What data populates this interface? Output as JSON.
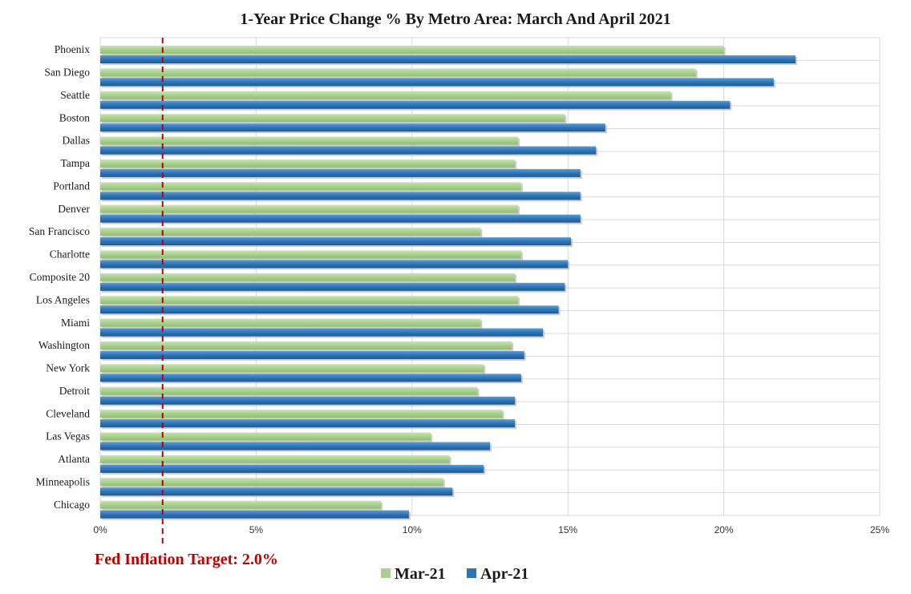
{
  "chart_data": {
    "type": "bar",
    "orientation": "horizontal",
    "title": "1-Year Price Change % By Metro Area: March And April 2021",
    "categories": [
      "Phoenix",
      "San Diego",
      "Seattle",
      "Boston",
      "Dallas",
      "Tampa",
      "Portland",
      "Denver",
      "San Francisco",
      "Charlotte",
      "Composite 20",
      "Los Angeles",
      "Miami",
      "Washington",
      "New York",
      "Detroit",
      "Cleveland",
      "Las Vegas",
      "Atlanta",
      "Minneapolis",
      "Chicago"
    ],
    "series": [
      {
        "name": "Mar-21",
        "color": "#a9d08e",
        "values": [
          20.0,
          19.1,
          18.3,
          14.9,
          13.4,
          13.3,
          13.5,
          13.4,
          12.2,
          13.5,
          13.3,
          13.4,
          12.2,
          13.2,
          12.3,
          12.1,
          12.9,
          10.6,
          11.2,
          11.0,
          9.0
        ]
      },
      {
        "name": "Apr-21",
        "color": "#2e75b6",
        "values": [
          22.3,
          21.6,
          20.2,
          16.2,
          15.9,
          15.4,
          15.4,
          15.4,
          15.1,
          15.0,
          14.9,
          14.7,
          14.2,
          13.6,
          13.5,
          13.3,
          13.3,
          12.5,
          12.3,
          11.3,
          9.9
        ]
      }
    ],
    "x_ticks": [
      "0%",
      "5%",
      "10%",
      "15%",
      "20%",
      "25%"
    ],
    "x_tick_values": [
      0,
      5,
      10,
      15,
      20,
      25
    ],
    "xlim": [
      0,
      25
    ],
    "grid": true,
    "legend": "bottom",
    "reference_line": {
      "value": 2.0,
      "label": "Fed Inflation Target: 2.0%",
      "color": "#c00000"
    }
  }
}
